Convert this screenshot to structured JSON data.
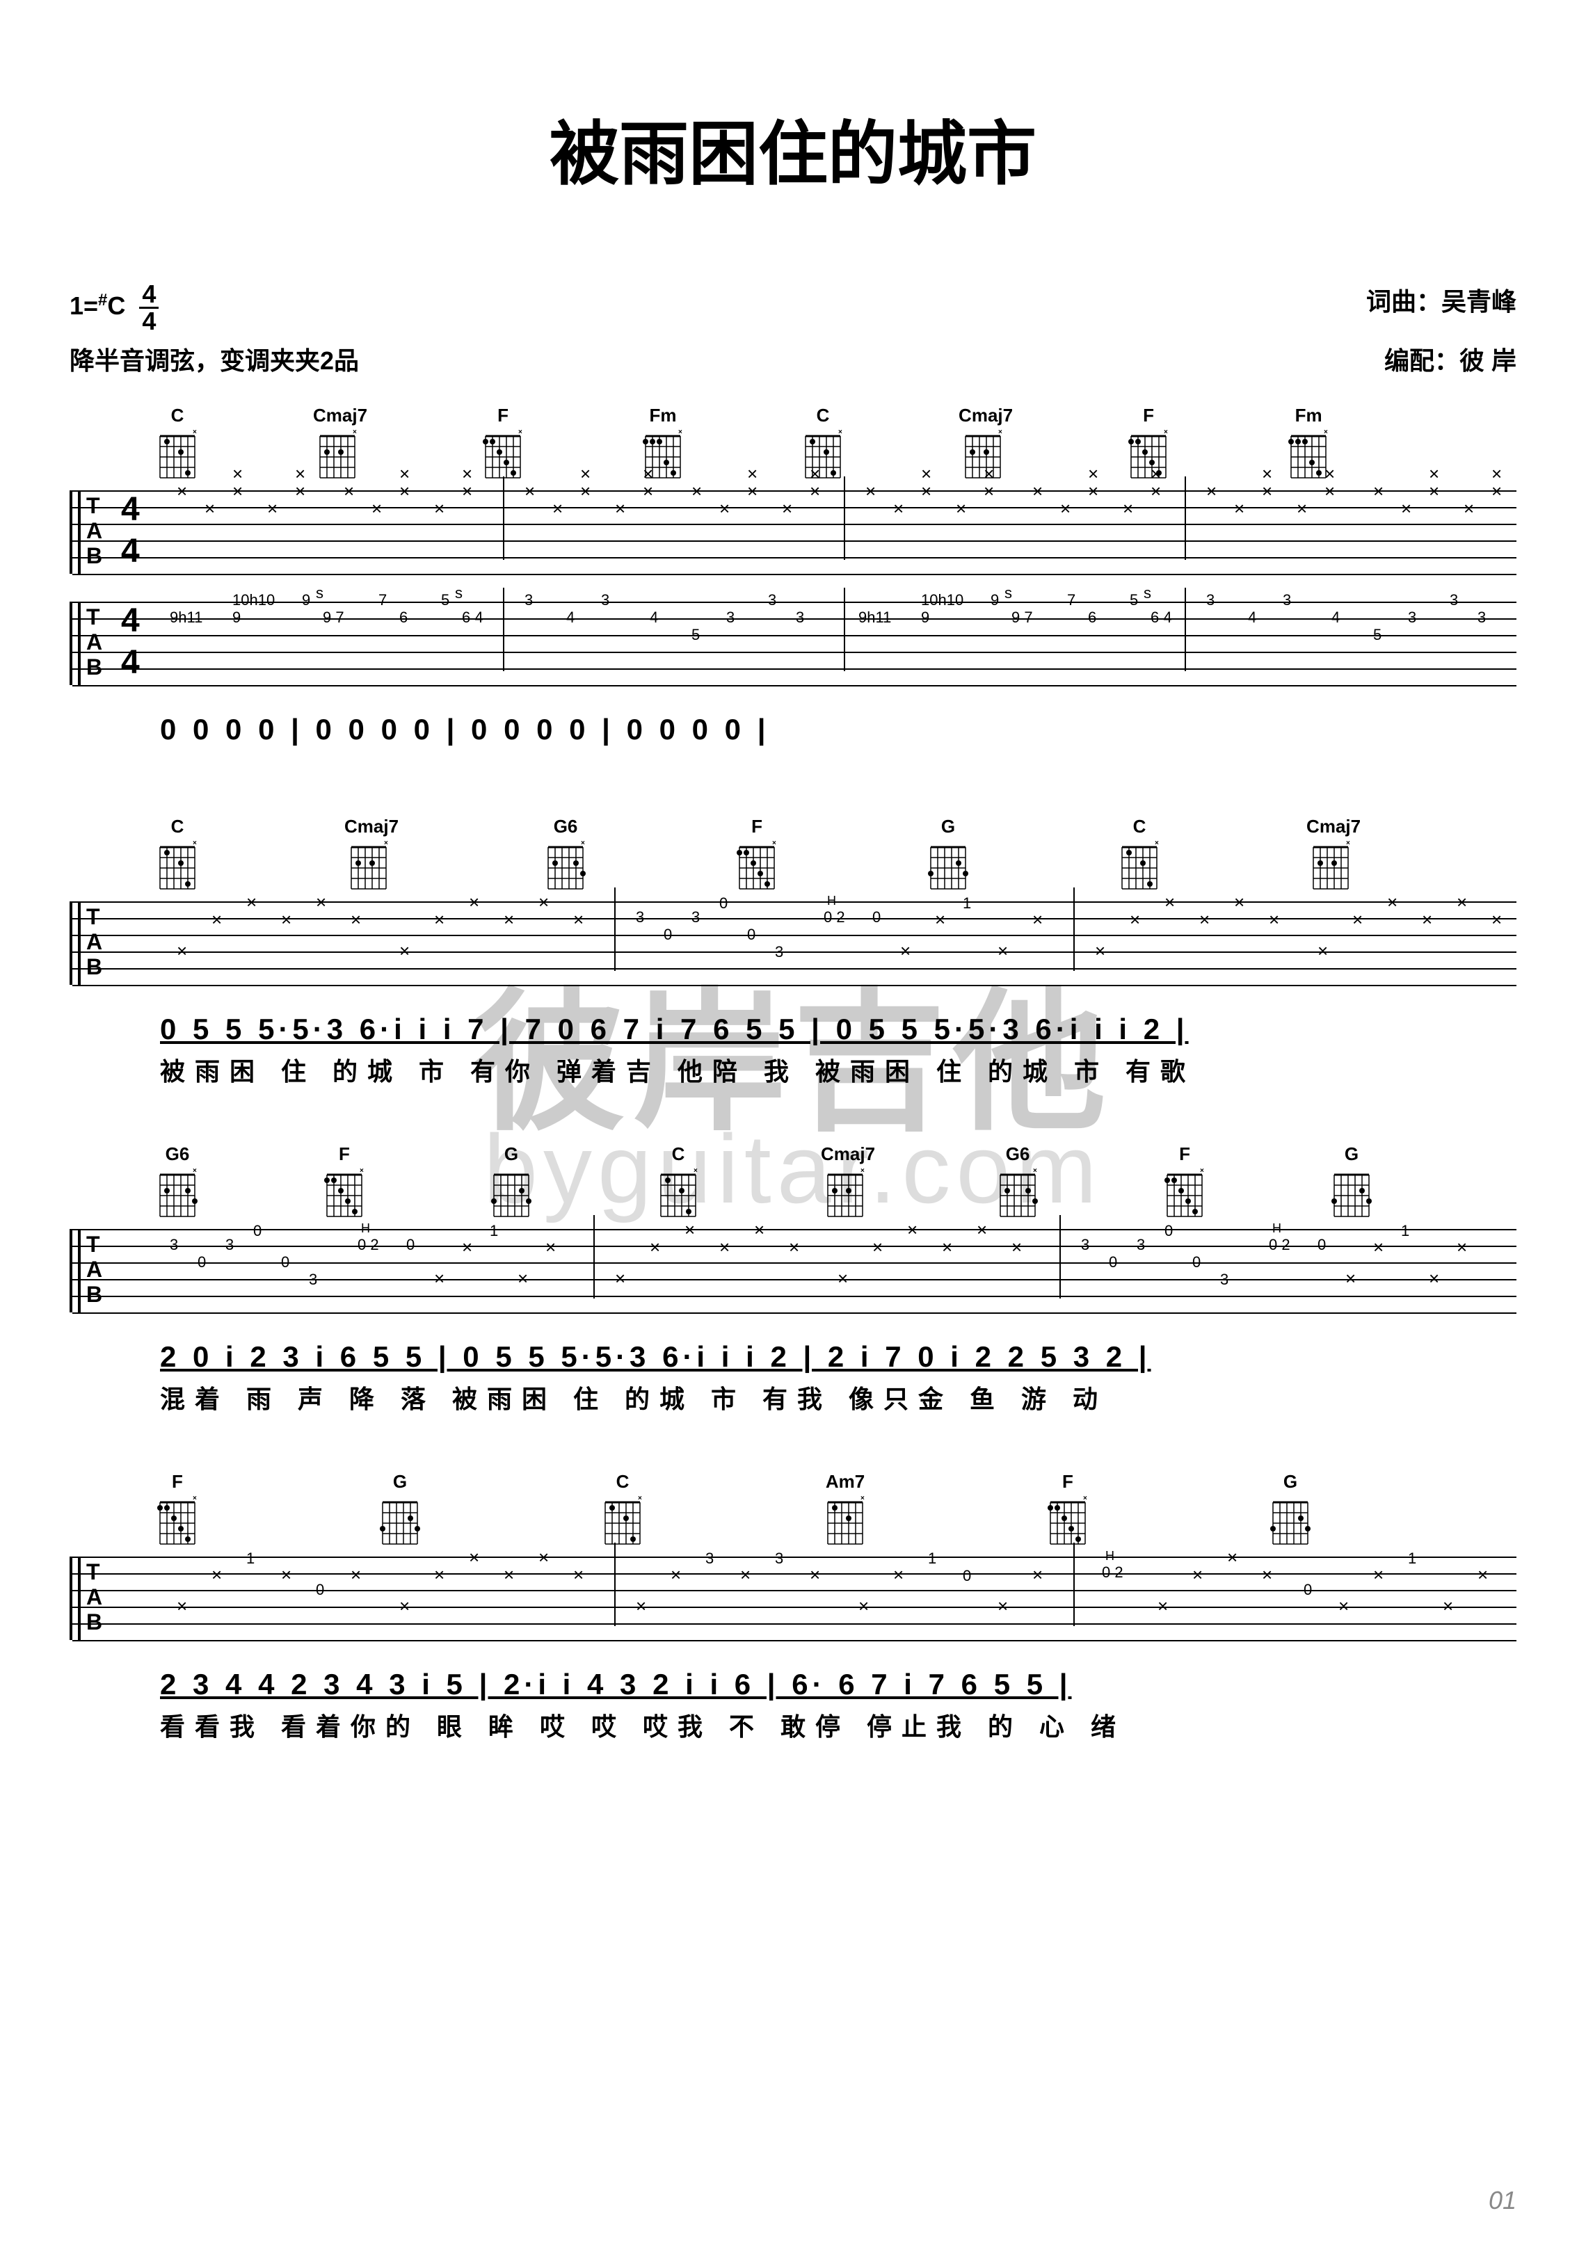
{
  "title": "被雨困住的城市",
  "key_label": "1=",
  "key": "C",
  "sharp": "#",
  "time_sig_top": "4",
  "time_sig_bot": "4",
  "tuning_note": "降半音调弦，变调夹夹2品",
  "credits": {
    "composer_label": "词曲：",
    "composer": "吴青峰",
    "arranger_label": "编配：",
    "arranger": "彼    岸"
  },
  "watermark_text": "彼岸吉他",
  "watermark_url": "byguitar.com",
  "page_number": "01",
  "chord_names": [
    "C",
    "Cmaj7",
    "F",
    "Fm",
    "G6",
    "G",
    "Am7"
  ],
  "systems": [
    {
      "chords": [
        "C",
        "Cmaj7",
        "F",
        "Fm",
        "C",
        "Cmaj7",
        "F",
        "Fm"
      ],
      "numbers": "0    0    0    0   | 0    0    0    0  | 0    0    0    0   | 0    0    0    0  |",
      "lyrics": ""
    },
    {
      "chords": [
        "C",
        "Cmaj7",
        "G6",
        "F",
        "G",
        "C",
        "Cmaj7"
      ],
      "numbers": "0 5 5 5·5·3 6·i i i 7 | 7   0 6 7 i  7 6 5 5  | 0 5 5 5·5·3 6·i i i 2 |",
      "lyrics": "被雨困 住 的城 市   有你        弹着吉 他陪 我       被雨困 住 的城 市   有歌"
    },
    {
      "chords": [
        "G6",
        "F",
        "G",
        "C",
        "Cmaj7",
        "G6",
        "F",
        "G"
      ],
      "numbers": "2    0 i 2 3  i  6 5 5 | 0 5 5 5·5·3 6·i i i 2 | 2 i 7 0 i 2 2  5 3 2 |",
      "lyrics": "      混着 雨 声 降 落     被雨困 住 的城 市   有我          像只金 鱼 游 动"
    },
    {
      "chords": [
        "F",
        "G",
        "C",
        "Am7",
        "F",
        "G"
      ],
      "numbers": "2 3 4 4  2 3 4 3  i 5 | 2·i i    4 3 2 i i 6 | 6·    6 7 i 7  6 5 5 |",
      "lyrics": "看看我  看着你的 眼 眸    哎  哎     哎我 不 敢停              停止我 的 心 绪"
    }
  ],
  "tab_clef": {
    "t": "T",
    "a": "A",
    "b": "B"
  },
  "colors": {
    "text": "#000000",
    "watermark": "#cccccc",
    "watermark_url": "#dddddd",
    "page_num": "#888888",
    "background": "#ffffff"
  }
}
